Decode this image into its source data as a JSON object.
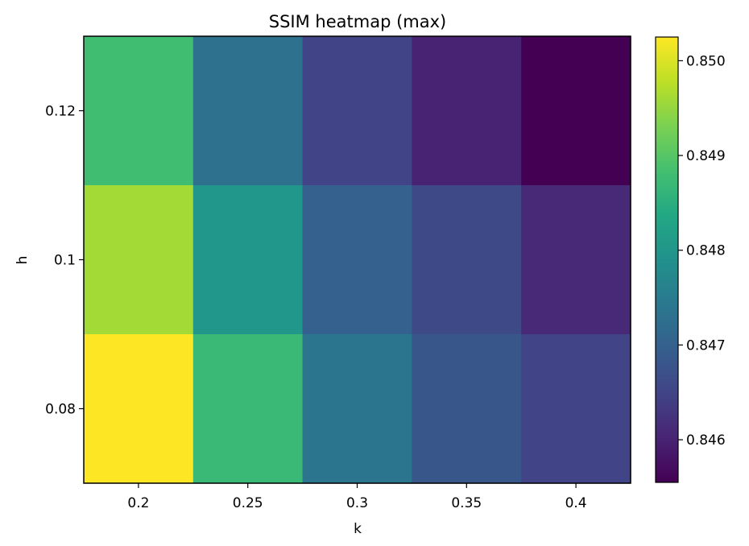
{
  "chart_data": {
    "type": "heatmap",
    "title": "SSIM heatmap (max)",
    "xlabel": "k",
    "ylabel": "h",
    "x": [
      "0.2",
      "0.25",
      "0.3",
      "0.35",
      "0.4"
    ],
    "y": [
      "0.12",
      "0.1",
      "0.08"
    ],
    "values": [
      [
        0.8488,
        0.8473,
        0.8465,
        0.846,
        0.84555
      ],
      [
        0.8496,
        0.848,
        0.847,
        0.8466,
        0.8461
      ],
      [
        0.85025,
        0.8487,
        0.8474,
        0.8468,
        0.8465
      ]
    ],
    "colormap": "viridis",
    "colorbar": {
      "range": [
        0.84555,
        0.85025
      ],
      "ticks": [
        "0.846",
        "0.847",
        "0.848",
        "0.849",
        "0.850"
      ]
    },
    "grid": false
  }
}
